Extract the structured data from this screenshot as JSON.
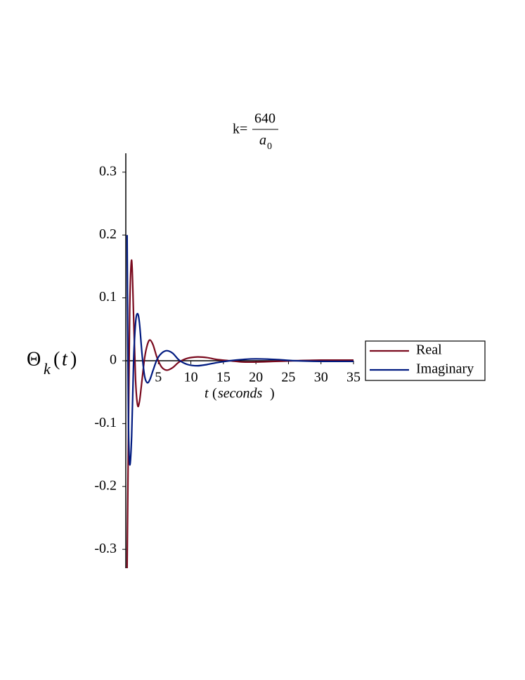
{
  "chart_data": {
    "type": "line",
    "title": {
      "prefix": "k=",
      "numerator": "640",
      "denominator": "a",
      "denominator_subscript": "0"
    },
    "y_label": {
      "symbol": "Θ",
      "subscript": "k",
      "open": "(",
      "variable": "t",
      "close": ")"
    },
    "x_label": {
      "variable": "t",
      "open": "(",
      "unit": "seconds",
      "close": ")"
    },
    "x": [
      0.2,
      0.4,
      0.6,
      0.9,
      1.2,
      1.5,
      1.8,
      2.1,
      2.5,
      2.9,
      3.3,
      3.7,
      4.2,
      4.8,
      5.5,
      6.3,
      7.2,
      8.2,
      9.5,
      11,
      12.5,
      14,
      16,
      18,
      20,
      23,
      26,
      30,
      35
    ],
    "series": [
      {
        "name": "Real",
        "color": "#7a0a1e",
        "values": [
          -0.33,
          -0.12,
          0.08,
          0.16,
          0.07,
          -0.03,
          -0.07,
          -0.065,
          -0.03,
          0.005,
          0.025,
          0.033,
          0.025,
          0.005,
          -0.01,
          -0.015,
          -0.011,
          -0.002,
          0.004,
          0.006,
          0.005,
          0.002,
          0,
          -0.002,
          -0.002,
          -0.001,
          0,
          0.001,
          0.001
        ]
      },
      {
        "name": "Imaginary",
        "color": "#001a80",
        "values": [
          0.2,
          -0.09,
          -0.165,
          -0.12,
          0,
          0.06,
          0.075,
          0.06,
          0.01,
          -0.025,
          -0.035,
          -0.03,
          -0.015,
          0.002,
          0.012,
          0.016,
          0.012,
          0.001,
          -0.006,
          -0.008,
          -0.006,
          -0.003,
          0,
          0.002,
          0.003,
          0.002,
          0,
          -0.001,
          -0.001
        ]
      }
    ],
    "xlim": [
      0,
      35
    ],
    "ylim": [
      -0.33,
      0.33
    ],
    "xticks": [
      5,
      10,
      15,
      20,
      25,
      30,
      35
    ],
    "yticks": [
      -0.3,
      -0.2,
      -0.1,
      0,
      0.1,
      0.2,
      0.3
    ],
    "legend": "right"
  }
}
